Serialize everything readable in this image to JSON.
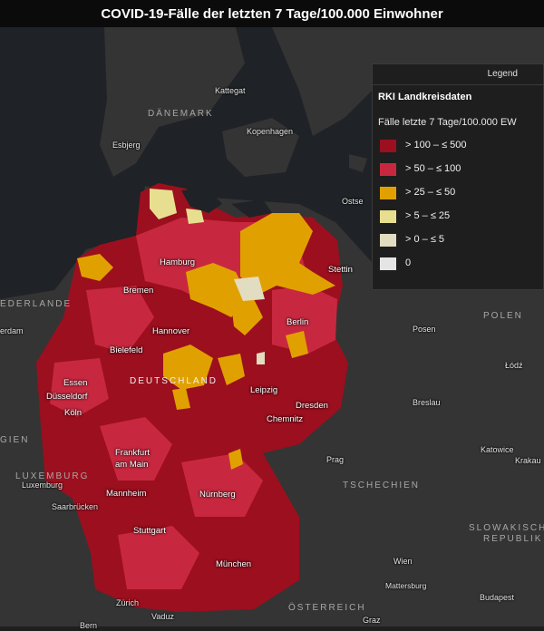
{
  "title": "COVID-19-Fälle der letzten 7 Tage/100.000 Einwohner",
  "colors": {
    "sea": "#1f2226",
    "land": "#353535",
    "high": "#9c0f1e",
    "mid": "#c8283f",
    "low": "#e0a100",
    "lower": "#e7df8f",
    "lowest": "#e2dcc0",
    "zero": "#e5e5e5"
  },
  "countries": {
    "daenemark": "DÄNEMARK",
    "niederlande": "EDERLANDE",
    "polen": "POLEN",
    "deutschland": "DEUTSCHLAND",
    "luxemburg": "LUXEMBURG",
    "tschechien": "TSCHECHIEN",
    "slowakische": "SLOWAKISCHE",
    "republik": "REPUBLIK",
    "oesterreich": "ÖSTERREICH",
    "belgien": "GIEN"
  },
  "water": {
    "kattegat": "Kattegat",
    "ostsee": "Ostse"
  },
  "places": {
    "esbjerg": "Esbjerg",
    "kopenhagen": "Kopenhagen",
    "hamburg": "Hamburg",
    "bremen": "Bremen",
    "stettin": "Stettin",
    "berlin": "Berlin",
    "hannover": "Hannover",
    "bielefeld": "Bielefeld",
    "posen": "Posen",
    "amsterdam": "erdam",
    "essen": "Essen",
    "duesseldorf": "Düsseldorf",
    "koeln": "Köln",
    "leipzig": "Leipzig",
    "dresden": "Dresden",
    "chemnitz": "Chemnitz",
    "breslau": "Breslau",
    "lodz": "Łódź",
    "frankfurt": "Frankfurt",
    "am_main": "am Main",
    "prag": "Prag",
    "katowice": "Katowice",
    "krakau": "Krakau",
    "luxemburg_city": "Luxemburg",
    "mannheim": "Mannheim",
    "nuernberg": "Nürnberg",
    "saarbruecken": "Saarbrücken",
    "stuttgart": "Stuttgart",
    "muenchen": "München",
    "wien": "Wien",
    "mattersburg": "Mattersburg",
    "budapest": "Budapest",
    "zuerich": "Zürich",
    "vaduz": "Vaduz",
    "graz": "Graz",
    "bern": "Bern"
  },
  "legend": {
    "header": "Legend",
    "layer_title": "RKI Landkreisdaten",
    "subtitle": "Fälle letzte 7 Tage/100.000 EW",
    "items": [
      {
        "label": "> 100 – ≤ 500",
        "color": "#9c0f1e"
      },
      {
        "label": "> 50 – ≤ 100",
        "color": "#c8283f"
      },
      {
        "label": "> 25 – ≤ 50",
        "color": "#e0a100"
      },
      {
        "label": "> 5 – ≤ 25",
        "color": "#e7df8f"
      },
      {
        "label": "> 0 – ≤ 5",
        "color": "#e2dcc0"
      },
      {
        "label": "0",
        "color": "#e5e5e5"
      }
    ]
  }
}
